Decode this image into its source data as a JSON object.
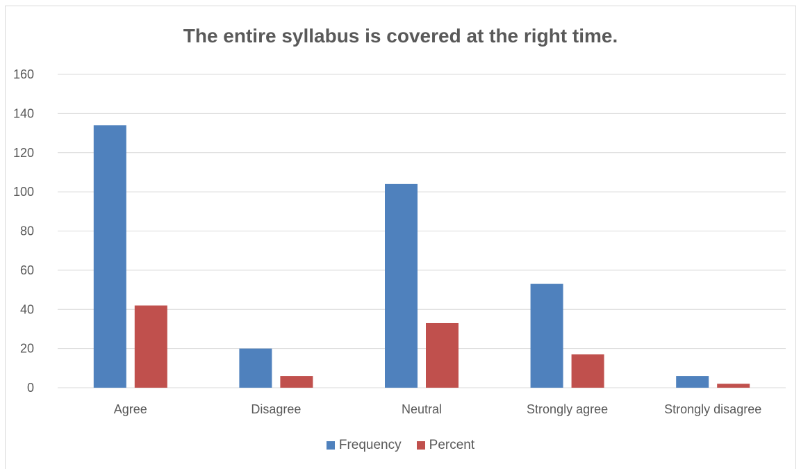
{
  "chart_data": {
    "type": "bar",
    "title": "The entire syllabus is covered at the right time.",
    "categories": [
      "Agree",
      "Disagree",
      "Neutral",
      "Strongly agree",
      "Strongly disagree"
    ],
    "series": [
      {
        "name": "Frequency",
        "color": "#4f81bd",
        "values": [
          134,
          20,
          104,
          53,
          6
        ]
      },
      {
        "name": "Percent",
        "color": "#c0504d",
        "values": [
          42,
          6,
          33,
          17,
          2
        ]
      }
    ],
    "ylim": [
      0,
      160
    ],
    "yticks": [
      "0",
      "20",
      "40",
      "60",
      "80",
      "100",
      "120",
      "140",
      "160"
    ],
    "grid": true,
    "legend_position": "bottom",
    "xlabel": "",
    "ylabel": ""
  }
}
